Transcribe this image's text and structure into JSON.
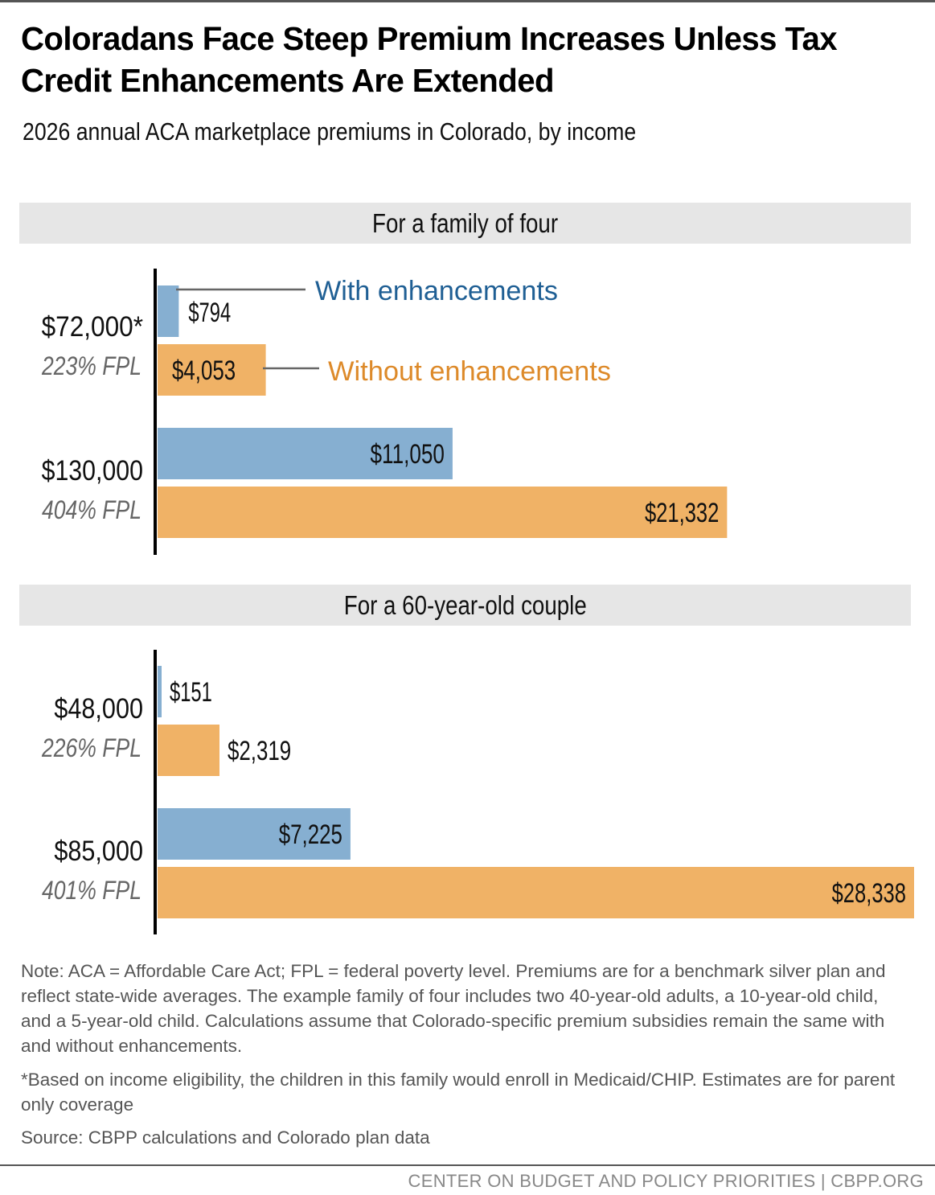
{
  "header": {
    "title": "Coloradans Face Steep Premium Increases Unless Tax Credit Enhancements Are Extended",
    "subtitle": "2026 annual ACA marketplace premiums in Colorado, by income"
  },
  "colors": {
    "with_enhancements": "#86afd1",
    "without_enhancements": "#f0b266",
    "with_legend_text": "#1f5f94",
    "without_legend_text": "#dd8a2a",
    "panel_header_bg": "#e6e6e6"
  },
  "chart_data": [
    {
      "type": "bar",
      "orientation": "horizontal",
      "title": "For a family of four",
      "categories": [
        "$72,000*",
        "$130,000"
      ],
      "category_sublabels": [
        "223% FPL",
        "404% FPL"
      ],
      "series": [
        {
          "name": "With enhancements",
          "values": [
            794,
            11050
          ],
          "labels": [
            "$794",
            "$11,050"
          ]
        },
        {
          "name": "Without enhancements",
          "values": [
            4053,
            21332
          ],
          "labels": [
            "$4,053",
            "$21,332"
          ]
        }
      ],
      "xlim": [
        0,
        28338
      ],
      "legend": "inline-callouts",
      "grid": false
    },
    {
      "type": "bar",
      "orientation": "horizontal",
      "title": "For a 60-year-old couple",
      "categories": [
        "$48,000",
        "$85,000"
      ],
      "category_sublabels": [
        "226% FPL",
        "401% FPL"
      ],
      "series": [
        {
          "name": "With enhancements",
          "values": [
            151,
            7225
          ],
          "labels": [
            "$151",
            "$7,225"
          ]
        },
        {
          "name": "Without enhancements",
          "values": [
            2319,
            28338
          ],
          "labels": [
            "$2,319",
            "$28,338"
          ]
        }
      ],
      "xlim": [
        0,
        28338
      ],
      "legend": "none",
      "grid": false
    }
  ],
  "notes": {
    "note": "Note: ACA = Affordable Care Act; FPL = federal poverty level. Premiums are for a benchmark silver plan and reflect state-wide averages. The example family of four includes two 40-year-old adults, a 10-year-old child, and a 5-year-old child. Calculations assume that Colorado-specific premium subsidies remain the same with and without enhancements.",
    "footnote": "*Based on income eligibility, the children in this family would enroll in Medicaid/CHIP. Estimates are for parent only coverage",
    "source": "Source: CBPP calculations and Colorado plan data"
  },
  "footer": {
    "credit": "CENTER ON BUDGET AND POLICY PRIORITIES | CBPP.ORG"
  }
}
